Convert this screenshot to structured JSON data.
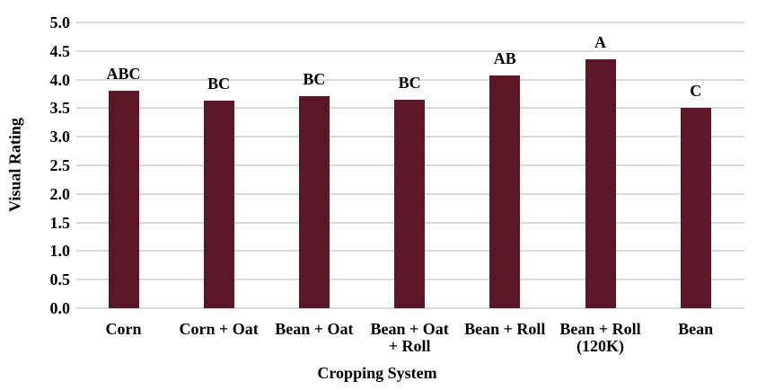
{
  "chart_data": {
    "type": "bar",
    "title": "",
    "xlabel": "Cropping System",
    "ylabel": "Visual Rating",
    "ylim": [
      0,
      5.0
    ],
    "yticks": [
      "0.0",
      "0.5",
      "1.0",
      "1.5",
      "2.0",
      "2.5",
      "3.0",
      "3.5",
      "4.0",
      "4.5",
      "5.0"
    ],
    "grid": true,
    "legend": null,
    "bar_color": "#5c1727",
    "categories": [
      "Corn",
      "Corn + Oat",
      "Bean + Oat",
      "Bean + Oat + Roll",
      "Bean + Roll",
      "Bean + Roll (120K)",
      "Bean"
    ],
    "category_lines": [
      [
        "Corn"
      ],
      [
        "Corn + Oat"
      ],
      [
        "Bean + Oat"
      ],
      [
        "Bean + Oat",
        "+ Roll"
      ],
      [
        "Bean + Roll"
      ],
      [
        "Bean + Roll",
        "(120K)"
      ],
      [
        "Bean"
      ]
    ],
    "values": [
      3.8,
      3.63,
      3.71,
      3.64,
      4.08,
      4.35,
      3.5
    ],
    "annotations": [
      "ABC",
      "BC",
      "BC",
      "BC",
      "AB",
      "A",
      "C"
    ]
  }
}
